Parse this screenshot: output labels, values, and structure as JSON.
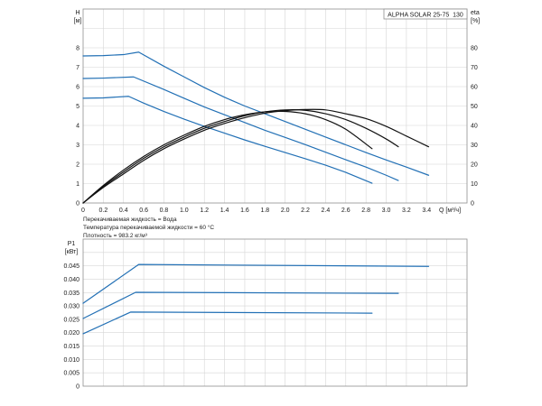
{
  "chart_data": [
    {
      "type": "line",
      "title": "ALPHA SOLAR 25-75  130",
      "xlabel": "Q [м³/ч]",
      "ylabel": "H",
      "ylabel_unit": "[м]",
      "y2label": "eta",
      "y2label_unit": "[%]",
      "xlim": [
        0,
        3.8
      ],
      "ylim": [
        0,
        10
      ],
      "y2lim": [
        0,
        100
      ],
      "xticks": [
        "0",
        "0.2",
        "0.4",
        "0.6",
        "0.8",
        "1.0",
        "1.2",
        "1.4",
        "1.6",
        "1.8",
        "2.0",
        "2.2",
        "2.4",
        "2.6",
        "2.8",
        "3.0",
        "3.2",
        "3.4"
      ],
      "yticks": [
        "0",
        "1",
        "2",
        "3",
        "4",
        "5",
        "6",
        "7",
        "8"
      ],
      "y2ticks": [
        "0",
        "10",
        "20",
        "30",
        "40",
        "50",
        "60",
        "70",
        "80"
      ],
      "xgrid_step": 0.2,
      "ygrid_step": 1,
      "grid": true,
      "series_h": [
        {
          "color": "#2270b5",
          "x": [
            0,
            0.2,
            0.4,
            0.55,
            0.8,
            1.0,
            1.2,
            1.4,
            1.6,
            1.8,
            2.0,
            2.2,
            2.4,
            2.6,
            2.8,
            3.0,
            3.2,
            3.42
          ],
          "y": [
            7.58,
            7.6,
            7.65,
            7.78,
            7.05,
            6.5,
            5.95,
            5.45,
            5.0,
            4.6,
            4.2,
            3.8,
            3.4,
            3.0,
            2.6,
            2.22,
            1.85,
            1.43
          ]
        },
        {
          "color": "#2270b5",
          "x": [
            0,
            0.2,
            0.5,
            0.8,
            1.0,
            1.2,
            1.4,
            1.6,
            1.8,
            2.0,
            2.2,
            2.4,
            2.6,
            2.8,
            3.0,
            3.12
          ],
          "y": [
            6.42,
            6.44,
            6.5,
            5.85,
            5.4,
            4.95,
            4.55,
            4.15,
            3.75,
            3.38,
            3.01,
            2.62,
            2.23,
            1.85,
            1.43,
            1.16
          ]
        },
        {
          "color": "#2270b5",
          "x": [
            0,
            0.2,
            0.45,
            0.6,
            0.8,
            1.0,
            1.2,
            1.4,
            1.6,
            1.8,
            2.0,
            2.2,
            2.4,
            2.6,
            2.86
          ],
          "y": [
            5.4,
            5.42,
            5.5,
            5.15,
            4.72,
            4.32,
            3.95,
            3.6,
            3.25,
            2.92,
            2.6,
            2.28,
            1.95,
            1.58,
            1.02
          ]
        }
      ],
      "series_eta": [
        {
          "color": "#111111",
          "x": [
            0,
            0.2,
            0.4,
            0.6,
            0.8,
            1.0,
            1.2,
            1.4,
            1.6,
            1.8,
            2.0,
            2.2,
            2.4,
            2.6,
            2.86
          ],
          "y": [
            0,
            9,
            17,
            24,
            30,
            35,
            39.5,
            43,
            45.5,
            47,
            47.2,
            46,
            43,
            38,
            28
          ]
        },
        {
          "color": "#111111",
          "x": [
            0,
            0.2,
            0.4,
            0.6,
            0.8,
            1.0,
            1.2,
            1.4,
            1.6,
            1.8,
            2.0,
            2.2,
            2.4,
            2.6,
            2.8,
            3.0,
            3.12
          ],
          "y": [
            0,
            8.5,
            16,
            23,
            29,
            34,
            38.5,
            42,
            45,
            47,
            48,
            47.8,
            46,
            43,
            38.5,
            33,
            29
          ]
        },
        {
          "color": "#111111",
          "x": [
            0,
            0.2,
            0.4,
            0.6,
            0.8,
            1.0,
            1.2,
            1.4,
            1.6,
            1.8,
            2.0,
            2.2,
            2.4,
            2.6,
            2.8,
            3.0,
            3.2,
            3.42
          ],
          "y": [
            0,
            8,
            15,
            22,
            28,
            33,
            37.5,
            41,
            44,
            46.3,
            47.6,
            48.2,
            48,
            46,
            43.5,
            39.5,
            34.5,
            29
          ]
        }
      ]
    },
    {
      "type": "line",
      "ylabel": "P1",
      "ylabel_unit": "[кВт]",
      "xlim": [
        0,
        3.8
      ],
      "ylim": [
        0,
        0.055
      ],
      "yticks": [
        "0",
        "0.005",
        "0.010",
        "0.015",
        "0.020",
        "0.025",
        "0.030",
        "0.035",
        "0.040",
        "0.045"
      ],
      "xgrid_step": 0.2,
      "ygrid_step": 0.005,
      "grid": true,
      "series_p1": [
        {
          "color": "#2270b5",
          "x": [
            0,
            0.55,
            3.42
          ],
          "y": [
            0.031,
            0.0455,
            0.0448
          ]
        },
        {
          "color": "#2270b5",
          "x": [
            0,
            0.52,
            3.12
          ],
          "y": [
            0.0253,
            0.0351,
            0.0347
          ]
        },
        {
          "color": "#2270b5",
          "x": [
            0,
            0.47,
            2.86
          ],
          "y": [
            0.0196,
            0.0277,
            0.0273
          ]
        }
      ]
    }
  ],
  "notes": [
    "Перекачиваемая жидкость = Вода",
    "Температура перекачиваемой жидкости = 60 °C",
    "Плотность = 983.2 кг/м³"
  ]
}
